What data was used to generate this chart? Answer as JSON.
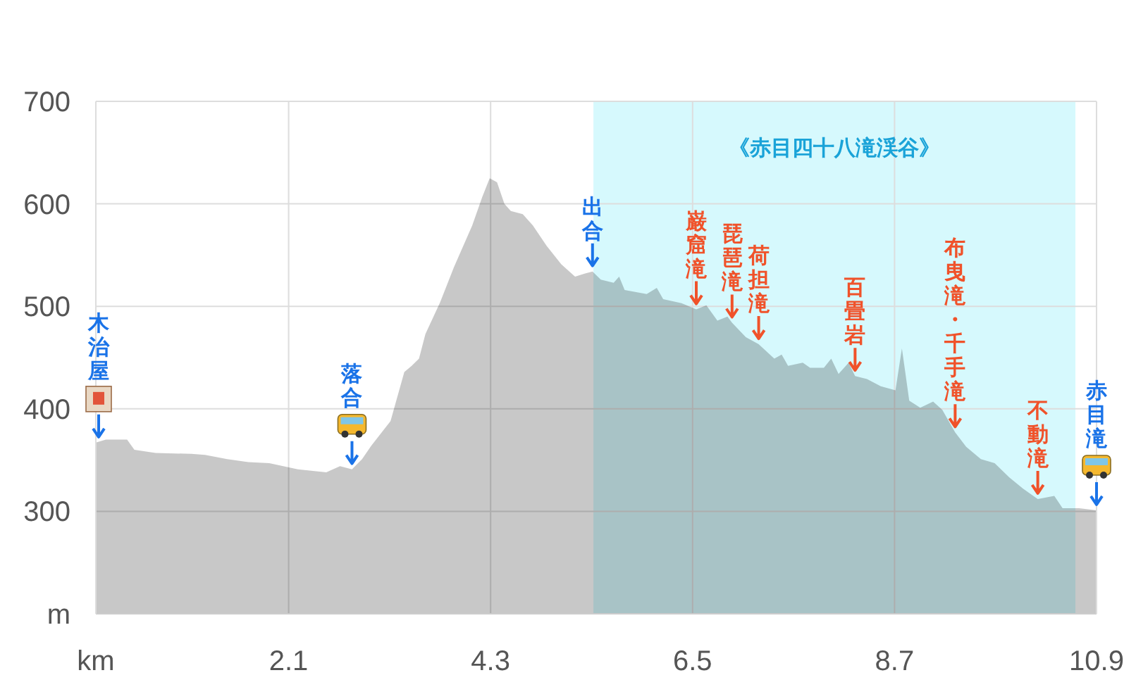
{
  "chart_data": {
    "type": "area",
    "x": [
      0,
      0.11,
      0.34,
      0.42,
      0.65,
      1.04,
      1.19,
      1.43,
      1.66,
      1.89,
      2.2,
      2.51,
      2.66,
      2.79,
      2.9,
      3.0,
      3.21,
      3.36,
      3.44,
      3.52,
      3.59,
      3.75,
      3.9,
      4.1,
      4.21,
      4.29,
      4.37,
      4.45,
      4.52,
      4.65,
      4.76,
      4.91,
      5.07,
      5.22,
      5.33,
      5.41,
      5.5,
      5.64,
      5.7,
      5.76,
      6.0,
      6.11,
      6.18,
      6.38,
      6.54,
      6.65,
      6.77,
      6.88,
      6.93,
      7.08,
      7.22,
      7.39,
      7.47,
      7.54,
      7.7,
      7.78,
      7.93,
      8.01,
      8.09,
      8.2,
      8.27,
      8.4,
      8.55,
      8.71,
      8.78,
      8.86,
      8.98,
      9.12,
      9.22,
      9.36,
      9.48,
      9.64,
      9.79,
      9.95,
      10.1,
      10.26,
      10.44,
      10.53,
      10.71,
      10.9
    ],
    "series": [
      {
        "color": "#b8b8b8",
        "values": [
          367,
          370,
          370,
          360,
          357,
          356,
          355,
          351,
          348,
          347,
          341,
          338,
          344,
          341,
          351,
          364,
          388,
          436,
          442,
          449,
          473,
          504,
          538,
          579,
          607,
          625,
          621,
          600,
          593,
          590,
          579,
          559,
          541,
          529,
          532,
          534,
          526,
          523,
          529,
          516,
          512,
          518,
          507,
          503,
          497,
          501,
          486,
          490,
          484,
          470,
          463,
          449,
          453,
          442,
          445,
          440,
          440,
          449,
          434,
          445,
          432,
          429,
          422,
          418,
          459,
          408,
          401,
          407,
          399,
          377,
          363,
          351,
          347,
          333,
          322,
          312,
          315,
          303,
          303,
          301
        ]
      }
    ],
    "xlim": [
      0,
      10.9
    ],
    "ylim": [
      200,
      700
    ],
    "xticks": [
      {
        "value": 0,
        "label": "km"
      },
      2.1,
      4.3,
      6.5,
      8.7,
      10.9
    ],
    "yticks": [
      {
        "value": 200,
        "label": "m"
      },
      300,
      400,
      500,
      600,
      700
    ],
    "grid": true,
    "bands": [
      {
        "axis": "x",
        "from": 5.42,
        "to": 10.67,
        "label": "《赤目四十八滝渓谷》",
        "color": "#d6f9fd"
      }
    ],
    "annotations": [
      {
        "text": "木治屋",
        "x": 0,
        "y": 367
      },
      {
        "text": "落合",
        "x": 2.79,
        "y": 341
      },
      {
        "text": "出合",
        "x": 5.41,
        "y": 534
      },
      {
        "text": "巌窟滝",
        "x": 6.54,
        "y": 497
      },
      {
        "text": "琵琶滝",
        "x": 6.93,
        "y": 484
      },
      {
        "text": "荷担滝",
        "x": 7.22,
        "y": 463
      },
      {
        "text": "百畳岩",
        "x": 8.27,
        "y": 432
      },
      {
        "text": "布曳滝・千手滝",
        "x": 9.36,
        "y": 377
      },
      {
        "text": "不動滝",
        "x": 10.26,
        "y": 312
      },
      {
        "text": "赤目滝",
        "x": 10.9,
        "y": 301
      }
    ]
  }
}
